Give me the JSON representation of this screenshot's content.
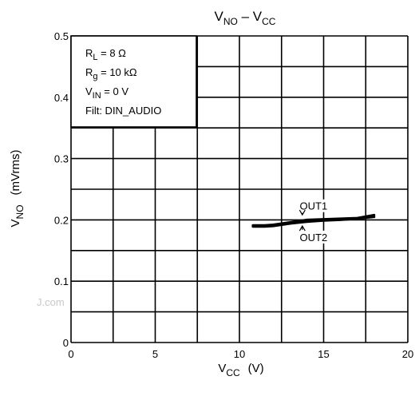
{
  "chart_data": {
    "type": "line",
    "title": {
      "main": "V",
      "main_sub": "NO",
      "sep": " – ",
      "second": "V",
      "second_sub": "CC"
    },
    "xlabel": {
      "main": "V",
      "sub": "CC",
      "unit": "(V)"
    },
    "ylabel": {
      "main": "V",
      "sub": "NO",
      "unit": "(mVrms)"
    },
    "xlim": [
      0,
      20
    ],
    "ylim": [
      0,
      0.5
    ],
    "x_major_ticks": [
      0,
      5,
      10,
      15,
      20
    ],
    "x_tick_labels": [
      "0",
      "5",
      "10",
      "15",
      "20"
    ],
    "y_major_ticks": [
      0,
      0.1,
      0.2,
      0.3,
      0.4,
      0.5
    ],
    "y_tick_labels": [
      "0",
      "0.1",
      "0.2",
      "0.3",
      "0.4",
      "0.5"
    ],
    "x_grid_step": 2.5,
    "y_grid_step": 0.05,
    "grid": true,
    "conditions": [
      {
        "main": "R",
        "sub": "L",
        "rest": " = 8 Ω"
      },
      {
        "main": "R",
        "sub": "g",
        "rest": " = 10 kΩ"
      },
      {
        "main": "V",
        "sub": "IN",
        "rest": " = 0 V"
      },
      {
        "main": "Filt: DIN_AUDIO",
        "sub": "",
        "rest": ""
      }
    ],
    "legend_position": "top-left",
    "series": [
      {
        "name": "OUT1",
        "x": [
          10.8,
          11.5,
          12.0,
          13.0,
          14.0,
          15.0,
          16.0,
          17.0,
          18.0
        ],
        "y": [
          0.191,
          0.191,
          0.192,
          0.196,
          0.2,
          0.201,
          0.202,
          0.203,
          0.208
        ]
      },
      {
        "name": "OUT2",
        "x": [
          10.8,
          11.5,
          12.0,
          13.0,
          14.0,
          15.0,
          16.0,
          17.0,
          18.0
        ],
        "y": [
          0.189,
          0.189,
          0.19,
          0.194,
          0.197,
          0.199,
          0.2,
          0.202,
          0.205
        ]
      }
    ],
    "annotations": [
      {
        "text": "OUT1",
        "x": 14.4,
        "y": 0.223
      },
      {
        "text": "OUT2",
        "x": 14.4,
        "y": 0.172
      }
    ]
  },
  "watermark": "J.com"
}
